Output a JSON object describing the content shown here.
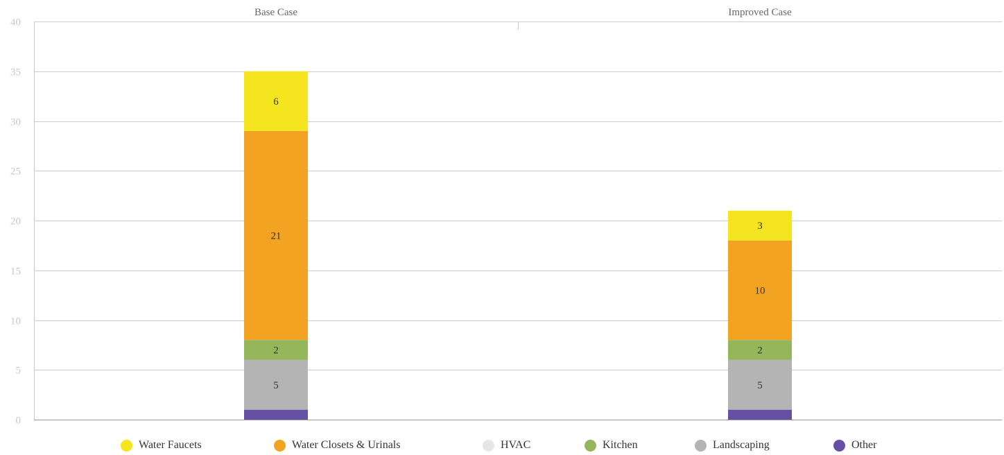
{
  "chart_data": {
    "type": "bar",
    "stacked": true,
    "categories": [
      "Base Case",
      "Improved Case"
    ],
    "series": [
      {
        "name": "Other",
        "color": "#6650a4",
        "values": [
          1,
          1
        ],
        "labels": [
          "",
          ""
        ]
      },
      {
        "name": "Landscaping",
        "color": "#b4b4b4",
        "values": [
          5,
          5
        ],
        "labels": [
          "5",
          "5"
        ]
      },
      {
        "name": "HVAC",
        "color": "#e6e6e6",
        "values": [
          0,
          0
        ],
        "labels": [
          "",
          ""
        ]
      },
      {
        "name": "Kitchen",
        "color": "#95b65b",
        "values": [
          2,
          2
        ],
        "labels": [
          "2",
          "2"
        ]
      },
      {
        "name": "Water Closets & Urinals",
        "color": "#f2a322",
        "values": [
          21,
          10
        ],
        "labels": [
          "21",
          "10"
        ]
      },
      {
        "name": "Water Faucets",
        "color": "#f5e51e",
        "values": [
          6,
          3
        ],
        "labels": [
          "6",
          "3"
        ]
      }
    ],
    "legend_order": [
      "Water Faucets",
      "Water Closets & Urinals",
      "HVAC",
      "Kitchen",
      "Landscaping",
      "Other"
    ],
    "yticks": [
      0,
      5,
      10,
      15,
      20,
      25,
      30,
      35,
      40
    ],
    "ylim": [
      0,
      40
    ],
    "grid": true,
    "legend_position": "bottom",
    "title": "",
    "xlabel": "",
    "ylabel": ""
  }
}
